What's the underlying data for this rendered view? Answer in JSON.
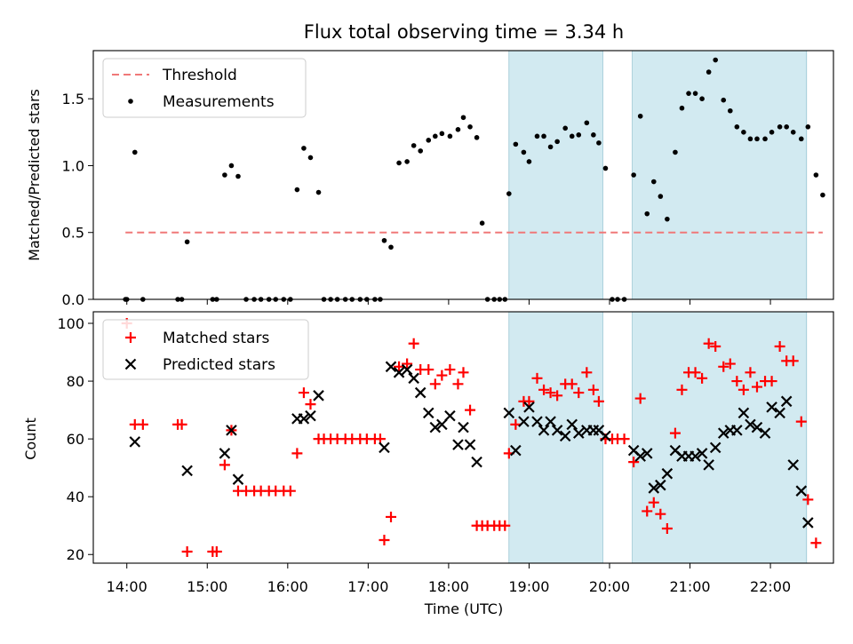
{
  "figure_title": "Flux total observing time = 3.34 h",
  "xlabel": "Time (UTC)",
  "x_ticks": [
    "14:00",
    "15:00",
    "16:00",
    "17:00",
    "18:00",
    "19:00",
    "20:00",
    "21:00",
    "22:00"
  ],
  "colors": {
    "threshold": "#f07878",
    "measurement": "#000000",
    "matched": "#ff0000",
    "predicted": "#000000",
    "shade": "#add8e6"
  },
  "chart_data": [
    {
      "type": "scatter",
      "panel": "top",
      "ylabel": "Matched/Predicted stars",
      "xlim": [
        "13:35",
        "22:47"
      ],
      "ylim": [
        0,
        1.86
      ],
      "y_ticks": [
        "0.0",
        "0.5",
        "1.0",
        "1.5"
      ],
      "legend_position": "upper-left",
      "legend": {
        "threshold_label": "Threshold",
        "measurements_label": "Measurements"
      },
      "threshold": 0.5,
      "shaded_intervals": [
        [
          "18:45",
          "19:55"
        ],
        [
          "20:17",
          "22:27"
        ]
      ],
      "measurements": [
        [
          "13:59",
          0
        ],
        [
          "14:00",
          0
        ],
        [
          "14:06",
          1.1
        ],
        [
          "14:12",
          0
        ],
        [
          "14:38",
          0
        ],
        [
          "14:41",
          0
        ],
        [
          "14:45",
          0.43
        ],
        [
          "15:04",
          0
        ],
        [
          "15:07",
          0
        ],
        [
          "15:13",
          0.93
        ],
        [
          "15:18",
          1.0
        ],
        [
          "15:23",
          0.92
        ],
        [
          "15:29",
          0
        ],
        [
          "15:35",
          0
        ],
        [
          "15:40",
          0
        ],
        [
          "15:46",
          0
        ],
        [
          "15:51",
          0
        ],
        [
          "15:57",
          0
        ],
        [
          "16:02",
          0
        ],
        [
          "16:07",
          0.82
        ],
        [
          "16:12",
          1.13
        ],
        [
          "16:17",
          1.06
        ],
        [
          "16:23",
          0.8
        ],
        [
          "16:27",
          0
        ],
        [
          "16:32",
          0
        ],
        [
          "16:37",
          0
        ],
        [
          "16:43",
          0
        ],
        [
          "16:48",
          0
        ],
        [
          "16:54",
          0
        ],
        [
          "16:59",
          0
        ],
        [
          "17:05",
          0
        ],
        [
          "17:09",
          0
        ],
        [
          "17:12",
          0.44
        ],
        [
          "17:17",
          0.39
        ],
        [
          "17:23",
          1.02
        ],
        [
          "17:29",
          1.03
        ],
        [
          "17:34",
          1.15
        ],
        [
          "17:39",
          1.11
        ],
        [
          "17:45",
          1.19
        ],
        [
          "17:50",
          1.22
        ],
        [
          "17:55",
          1.24
        ],
        [
          "18:01",
          1.22
        ],
        [
          "18:07",
          1.27
        ],
        [
          "18:11",
          1.36
        ],
        [
          "18:16",
          1.29
        ],
        [
          "18:21",
          1.21
        ],
        [
          "18:25",
          0.57
        ],
        [
          "18:29",
          0
        ],
        [
          "18:34",
          0
        ],
        [
          "18:38",
          0
        ],
        [
          "18:42",
          0
        ],
        [
          "18:45",
          0.79
        ],
        [
          "18:50",
          1.16
        ],
        [
          "18:56",
          1.1
        ],
        [
          "19:00",
          1.03
        ],
        [
          "19:06",
          1.22
        ],
        [
          "19:11",
          1.22
        ],
        [
          "19:16",
          1.14
        ],
        [
          "19:21",
          1.18
        ],
        [
          "19:27",
          1.28
        ],
        [
          "19:32",
          1.22
        ],
        [
          "19:37",
          1.23
        ],
        [
          "19:43",
          1.32
        ],
        [
          "19:48",
          1.23
        ],
        [
          "19:52",
          1.17
        ],
        [
          "19:57",
          0.98
        ],
        [
          "20:02",
          0
        ],
        [
          "20:06",
          0
        ],
        [
          "20:11",
          0
        ],
        [
          "20:18",
          0.93
        ],
        [
          "20:23",
          1.37
        ],
        [
          "20:28",
          0.64
        ],
        [
          "20:33",
          0.88
        ],
        [
          "20:38",
          0.77
        ],
        [
          "20:43",
          0.6
        ],
        [
          "20:49",
          1.1
        ],
        [
          "20:54",
          1.43
        ],
        [
          "20:59",
          1.54
        ],
        [
          "21:04",
          1.54
        ],
        [
          "21:09",
          1.5
        ],
        [
          "21:14",
          1.7
        ],
        [
          "21:19",
          1.79
        ],
        [
          "21:25",
          1.49
        ],
        [
          "21:30",
          1.41
        ],
        [
          "21:35",
          1.29
        ],
        [
          "21:40",
          1.25
        ],
        [
          "21:45",
          1.2
        ],
        [
          "21:50",
          1.2
        ],
        [
          "21:56",
          1.2
        ],
        [
          "22:01",
          1.25
        ],
        [
          "22:07",
          1.29
        ],
        [
          "22:12",
          1.29
        ],
        [
          "22:17",
          1.25
        ],
        [
          "22:23",
          1.2
        ],
        [
          "22:28",
          1.29
        ],
        [
          "22:34",
          0.93
        ],
        [
          "22:39",
          0.78
        ]
      ]
    },
    {
      "type": "scatter",
      "panel": "bottom",
      "ylabel": "Count",
      "xlim": [
        "13:35",
        "22:47"
      ],
      "ylim": [
        17,
        104
      ],
      "y_ticks": [
        "20",
        "40",
        "60",
        "80",
        "100"
      ],
      "legend_position": "upper-left",
      "legend": {
        "matched_label": "Matched stars",
        "predicted_label": "Predicted stars"
      },
      "shaded_intervals": [
        [
          "18:45",
          "19:55"
        ],
        [
          "20:17",
          "22:27"
        ]
      ],
      "series": [
        {
          "name": "Matched stars",
          "marker": "+",
          "points": [
            [
              "14:00",
              100
            ],
            [
              "14:06",
              65
            ],
            [
              "14:12",
              65
            ],
            [
              "14:38",
              65
            ],
            [
              "14:41",
              65
            ],
            [
              "14:45",
              21
            ],
            [
              "15:04",
              21
            ],
            [
              "15:07",
              21
            ],
            [
              "15:13",
              51
            ],
            [
              "15:18",
              63
            ],
            [
              "15:23",
              42
            ],
            [
              "15:29",
              42
            ],
            [
              "15:35",
              42
            ],
            [
              "15:40",
              42
            ],
            [
              "15:46",
              42
            ],
            [
              "15:51",
              42
            ],
            [
              "15:57",
              42
            ],
            [
              "16:02",
              42
            ],
            [
              "16:07",
              55
            ],
            [
              "16:12",
              76
            ],
            [
              "16:17",
              72
            ],
            [
              "16:23",
              60
            ],
            [
              "16:27",
              60
            ],
            [
              "16:32",
              60
            ],
            [
              "16:37",
              60
            ],
            [
              "16:43",
              60
            ],
            [
              "16:48",
              60
            ],
            [
              "16:54",
              60
            ],
            [
              "16:59",
              60
            ],
            [
              "17:05",
              60
            ],
            [
              "17:09",
              60
            ],
            [
              "17:12",
              25
            ],
            [
              "17:17",
              33
            ],
            [
              "17:23",
              85
            ],
            [
              "17:29",
              86
            ],
            [
              "17:34",
              93
            ],
            [
              "17:39",
              84
            ],
            [
              "17:45",
              84
            ],
            [
              "17:50",
              79
            ],
            [
              "17:55",
              82
            ],
            [
              "18:01",
              84
            ],
            [
              "18:07",
              79
            ],
            [
              "18:11",
              83
            ],
            [
              "18:16",
              70
            ],
            [
              "18:21",
              30
            ],
            [
              "18:25",
              30
            ],
            [
              "18:29",
              30
            ],
            [
              "18:34",
              30
            ],
            [
              "18:38",
              30
            ],
            [
              "18:42",
              30
            ],
            [
              "18:45",
              55
            ],
            [
              "18:50",
              65
            ],
            [
              "18:56",
              73
            ],
            [
              "19:00",
              73
            ],
            [
              "19:06",
              81
            ],
            [
              "19:11",
              77
            ],
            [
              "19:16",
              76
            ],
            [
              "19:21",
              75
            ],
            [
              "19:27",
              79
            ],
            [
              "19:32",
              79
            ],
            [
              "19:37",
              76
            ],
            [
              "19:43",
              83
            ],
            [
              "19:48",
              77
            ],
            [
              "19:52",
              73
            ],
            [
              "19:57",
              60
            ],
            [
              "20:02",
              60
            ],
            [
              "20:06",
              60
            ],
            [
              "20:11",
              60
            ],
            [
              "20:18",
              52
            ],
            [
              "20:23",
              74
            ],
            [
              "20:28",
              35
            ],
            [
              "20:33",
              38
            ],
            [
              "20:38",
              34
            ],
            [
              "20:43",
              29
            ],
            [
              "20:49",
              62
            ],
            [
              "20:54",
              77
            ],
            [
              "20:59",
              83
            ],
            [
              "21:04",
              83
            ],
            [
              "21:09",
              81
            ],
            [
              "21:14",
              93
            ],
            [
              "21:19",
              92
            ],
            [
              "21:25",
              85
            ],
            [
              "21:30",
              86
            ],
            [
              "21:35",
              80
            ],
            [
              "21:40",
              77
            ],
            [
              "21:45",
              83
            ],
            [
              "21:50",
              78
            ],
            [
              "21:56",
              80
            ],
            [
              "22:01",
              80
            ],
            [
              "22:07",
              92
            ],
            [
              "22:12",
              87
            ],
            [
              "22:17",
              87
            ],
            [
              "22:23",
              66
            ],
            [
              "22:28",
              39
            ],
            [
              "22:34",
              24
            ]
          ]
        },
        {
          "name": "Predicted stars",
          "marker": "x",
          "points": [
            [
              "14:06",
              59
            ],
            [
              "14:45",
              49
            ],
            [
              "15:13",
              55
            ],
            [
              "15:18",
              63
            ],
            [
              "15:23",
              46
            ],
            [
              "16:07",
              67
            ],
            [
              "16:12",
              67
            ],
            [
              "16:17",
              68
            ],
            [
              "16:23",
              75
            ],
            [
              "17:12",
              57
            ],
            [
              "17:17",
              85
            ],
            [
              "17:23",
              83
            ],
            [
              "17:29",
              84
            ],
            [
              "17:34",
              81
            ],
            [
              "17:39",
              76
            ],
            [
              "17:45",
              69
            ],
            [
              "17:50",
              64
            ],
            [
              "17:55",
              65
            ],
            [
              "18:01",
              68
            ],
            [
              "18:07",
              58
            ],
            [
              "18:11",
              64
            ],
            [
              "18:16",
              58
            ],
            [
              "18:21",
              52
            ],
            [
              "18:45",
              69
            ],
            [
              "18:50",
              56
            ],
            [
              "18:56",
              66
            ],
            [
              "19:00",
              71
            ],
            [
              "19:06",
              66
            ],
            [
              "19:11",
              63
            ],
            [
              "19:16",
              66
            ],
            [
              "19:21",
              63
            ],
            [
              "19:27",
              61
            ],
            [
              "19:32",
              65
            ],
            [
              "19:37",
              62
            ],
            [
              "19:43",
              63
            ],
            [
              "19:48",
              63
            ],
            [
              "19:52",
              63
            ],
            [
              "19:57",
              61
            ],
            [
              "20:18",
              56
            ],
            [
              "20:23",
              54
            ],
            [
              "20:28",
              55
            ],
            [
              "20:33",
              43
            ],
            [
              "20:38",
              44
            ],
            [
              "20:43",
              48
            ],
            [
              "20:49",
              56
            ],
            [
              "20:54",
              54
            ],
            [
              "20:59",
              54
            ],
            [
              "21:04",
              54
            ],
            [
              "21:09",
              55
            ],
            [
              "21:14",
              51
            ],
            [
              "21:19",
              57
            ],
            [
              "21:25",
              62
            ],
            [
              "21:30",
              63
            ],
            [
              "21:35",
              63
            ],
            [
              "21:40",
              69
            ],
            [
              "21:45",
              65
            ],
            [
              "21:50",
              64
            ],
            [
              "21:56",
              62
            ],
            [
              "22:01",
              71
            ],
            [
              "22:07",
              69
            ],
            [
              "22:12",
              73
            ],
            [
              "22:17",
              51
            ],
            [
              "22:23",
              42
            ],
            [
              "22:28",
              31
            ]
          ]
        }
      ]
    }
  ]
}
